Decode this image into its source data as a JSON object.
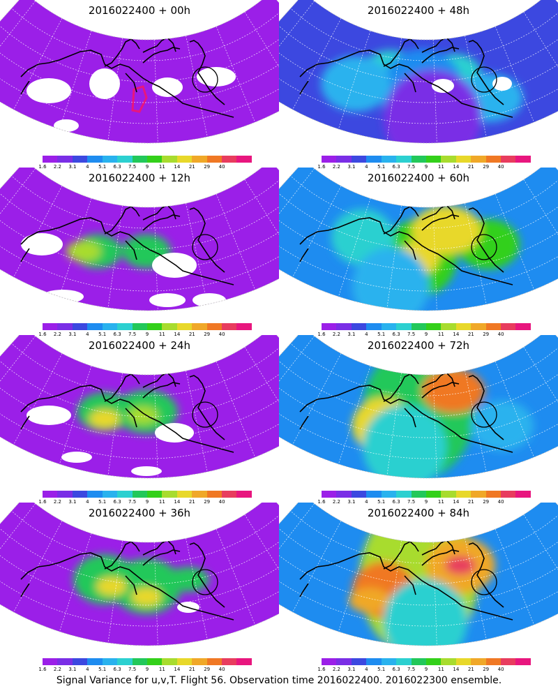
{
  "panels": [
    {
      "title": "2016022400 + 00h",
      "lead_hours": 0
    },
    {
      "title": "2016022400 + 48h",
      "lead_hours": 48
    },
    {
      "title": "2016022400 + 12h",
      "lead_hours": 12
    },
    {
      "title": "2016022400 + 60h",
      "lead_hours": 60
    },
    {
      "title": "2016022400 + 24h",
      "lead_hours": 24
    },
    {
      "title": "2016022400 + 72h",
      "lead_hours": 72
    },
    {
      "title": "2016022400 + 36h",
      "lead_hours": 36
    },
    {
      "title": "2016022400 + 84h",
      "lead_hours": 84
    }
  ],
  "colorbar": {
    "labels": [
      "1.6",
      "2.2",
      "3.1",
      "4",
      "5.1",
      "6.3",
      "7.5",
      "9",
      "11",
      "14",
      "21",
      "29",
      "40"
    ],
    "colors": [
      "#9b1fe8",
      "#7a2ee6",
      "#3c48e0",
      "#1e8cf0",
      "#29b2ee",
      "#2cd0d0",
      "#22c85a",
      "#33d01a",
      "#a8dc2e",
      "#e8d82a",
      "#f0a828",
      "#f07824",
      "#e83c5e",
      "#e8167e"
    ]
  },
  "caption": "Signal Variance for u,v,T. Flight 56. Observation time 2016022400. 2016022300 ensemble."
}
